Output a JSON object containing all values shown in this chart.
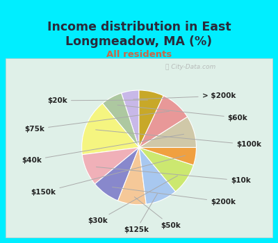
{
  "title": "Income distribution in East\nLongmeadow, MA (%)",
  "subtitle": "All residents",
  "title_color": "#2a2a3a",
  "subtitle_color": "#cc6644",
  "background_color": "#00eeff",
  "chart_bg_top": "#e8f5ee",
  "watermark": "ⓘ City-Data.com",
  "labels": [
    "> $200k",
    "$60k",
    "$100k",
    "$10k",
    "$200k",
    "$50k",
    "$125k",
    "$30k",
    "$150k",
    "$40k",
    "$75k",
    "$20k"
  ],
  "values": [
    5,
    6,
    16,
    9,
    8,
    8,
    9,
    9,
    5,
    9,
    9,
    7
  ],
  "colors": [
    "#c8b8e8",
    "#adc8a0",
    "#f5f580",
    "#f0b0b8",
    "#8888cc",
    "#f5c898",
    "#a8c8f0",
    "#cce870",
    "#f0a040",
    "#d0c8a8",
    "#e89898",
    "#c8a828"
  ],
  "startangle": 90,
  "label_fontsize": 7.5,
  "label_color": "#222222"
}
